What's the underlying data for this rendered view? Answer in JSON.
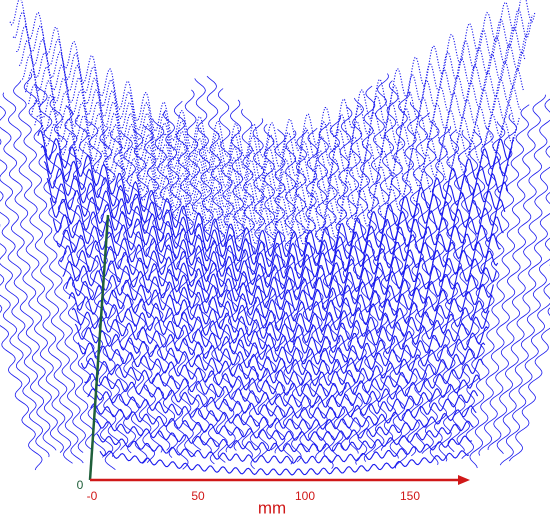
{
  "axis": {
    "x_label": "mm",
    "x_ticks": [
      "-0",
      "50",
      "100",
      "150"
    ],
    "y_tick": "0"
  }
}
